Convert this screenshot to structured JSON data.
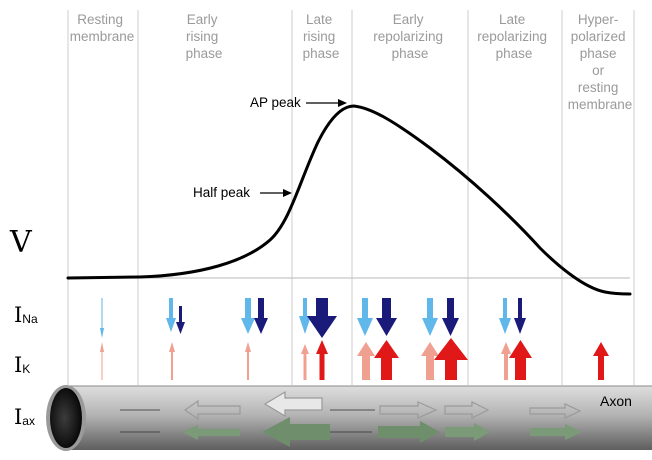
{
  "phases": [
    {
      "lines": [
        "Resting",
        "membrane"
      ]
    },
    {
      "lines": [
        "Early",
        "rising",
        "phase"
      ]
    },
    {
      "lines": [
        "Late",
        "rising",
        "phase"
      ]
    },
    {
      "lines": [
        "Early",
        "repolarizing",
        "phase"
      ]
    },
    {
      "lines": [
        "Late",
        "repolarizing",
        "phase"
      ]
    },
    {
      "lines": [
        "Hyper-",
        "polarized",
        "phase",
        "or",
        "resting",
        "membrane"
      ]
    }
  ],
  "annotations": {
    "ap_peak": "AP peak",
    "half_peak": "Half peak"
  },
  "labels": {
    "v": "V",
    "i_na_main": "I",
    "i_na_sub": "Na",
    "i_k_main": "I",
    "i_k_sub": "K",
    "i_ax_main": "I",
    "i_ax_sub": "ax",
    "axon": "Axon"
  },
  "colors": {
    "na_light": "#5fb7ea",
    "na_dark": "#1a1a7a",
    "k_light": "#f0a090",
    "k_dark": "#e01818",
    "divider": "#c8c8c8",
    "curve": "#000000",
    "axial_current": "#7a9a78"
  }
}
